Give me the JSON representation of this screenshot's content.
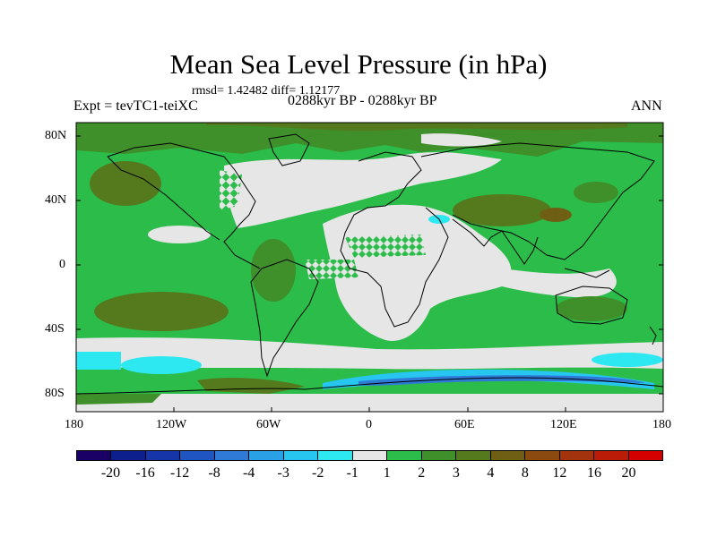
{
  "title": "Mean Sea Level Pressure (in hPa)",
  "stats": "rmsd= 1.42482 diff= 1.12177",
  "experiment": "Expt = tevTC1-teiXC",
  "period": "0288kyr BP - 0288kyr BP",
  "season": "ANN",
  "lat_labels": [
    "80N",
    "40N",
    "0",
    "40S",
    "80S"
  ],
  "lon_labels": [
    "180",
    "120W",
    "60W",
    "0",
    "60E",
    "120E",
    "180"
  ],
  "colorbar": {
    "colors": [
      "#1a0066",
      "#0d1f8c",
      "#1535a8",
      "#1f55c2",
      "#2f7ad6",
      "#2aa0e6",
      "#27c6f0",
      "#2de8f0",
      "#e6e6e6",
      "#2bbc4a",
      "#3f8f2a",
      "#557a1e",
      "#6e5f14",
      "#8a4a10",
      "#a3330c",
      "#bb1c08",
      "#d40000"
    ],
    "labels": [
      "-20",
      "-16",
      "-12",
      "-8",
      "-4",
      "-3",
      "-2",
      "-1",
      "1",
      "2",
      "3",
      "4",
      "8",
      "12",
      "16",
      "20"
    ]
  },
  "map_colors": {
    "grey": "#e6e6e6",
    "green": "#2bbc4a",
    "darkgreen": "#3f8f2a",
    "olive": "#557a1e",
    "brown": "#6e5f14",
    "cyan": "#2de8f0",
    "lightblue": "#27c6f0",
    "blue": "#2f7ad6"
  }
}
